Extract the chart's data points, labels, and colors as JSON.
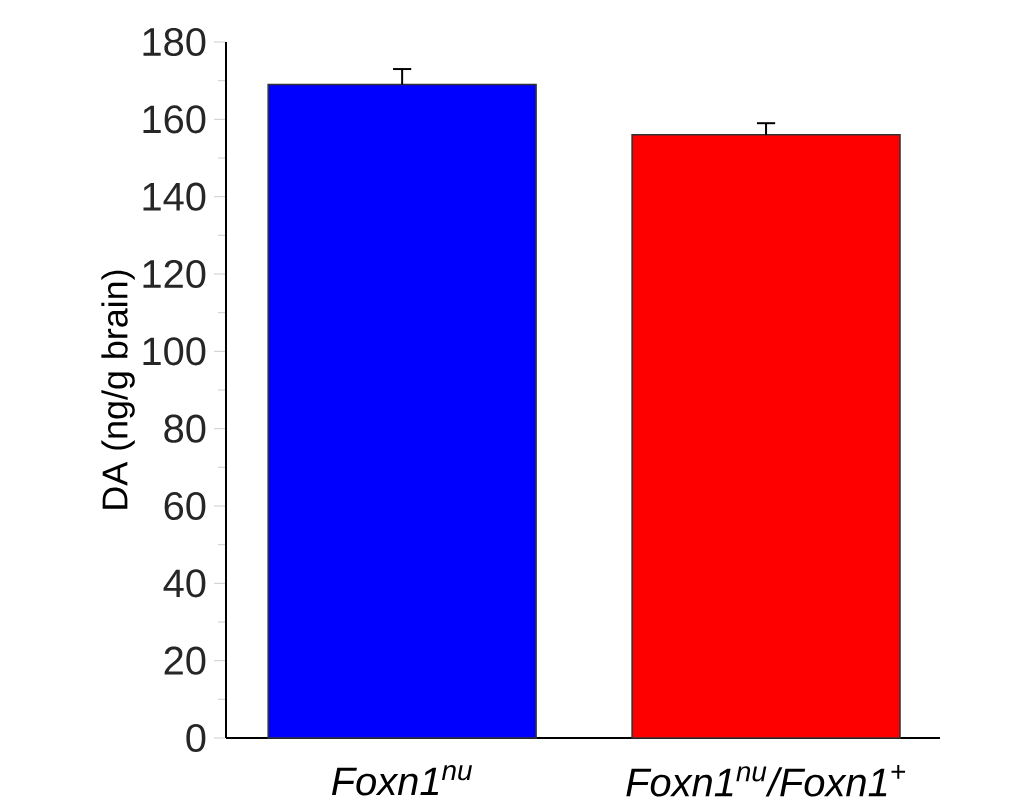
{
  "chart_data": {
    "type": "bar",
    "ylabel": "DA (ng/g brain)",
    "categories": [
      "Foxn1$^{nu}$",
      "Foxn1$^{nu}$/Foxn1$^{+}$"
    ],
    "values": [
      169,
      156
    ],
    "colors": [
      "#0000ff",
      "#ff0000"
    ],
    "errors": [
      4,
      3
    ],
    "ylim": [
      0,
      180
    ],
    "yticks": [
      0,
      20,
      40,
      60,
      80,
      100,
      120,
      140,
      160,
      180
    ]
  }
}
